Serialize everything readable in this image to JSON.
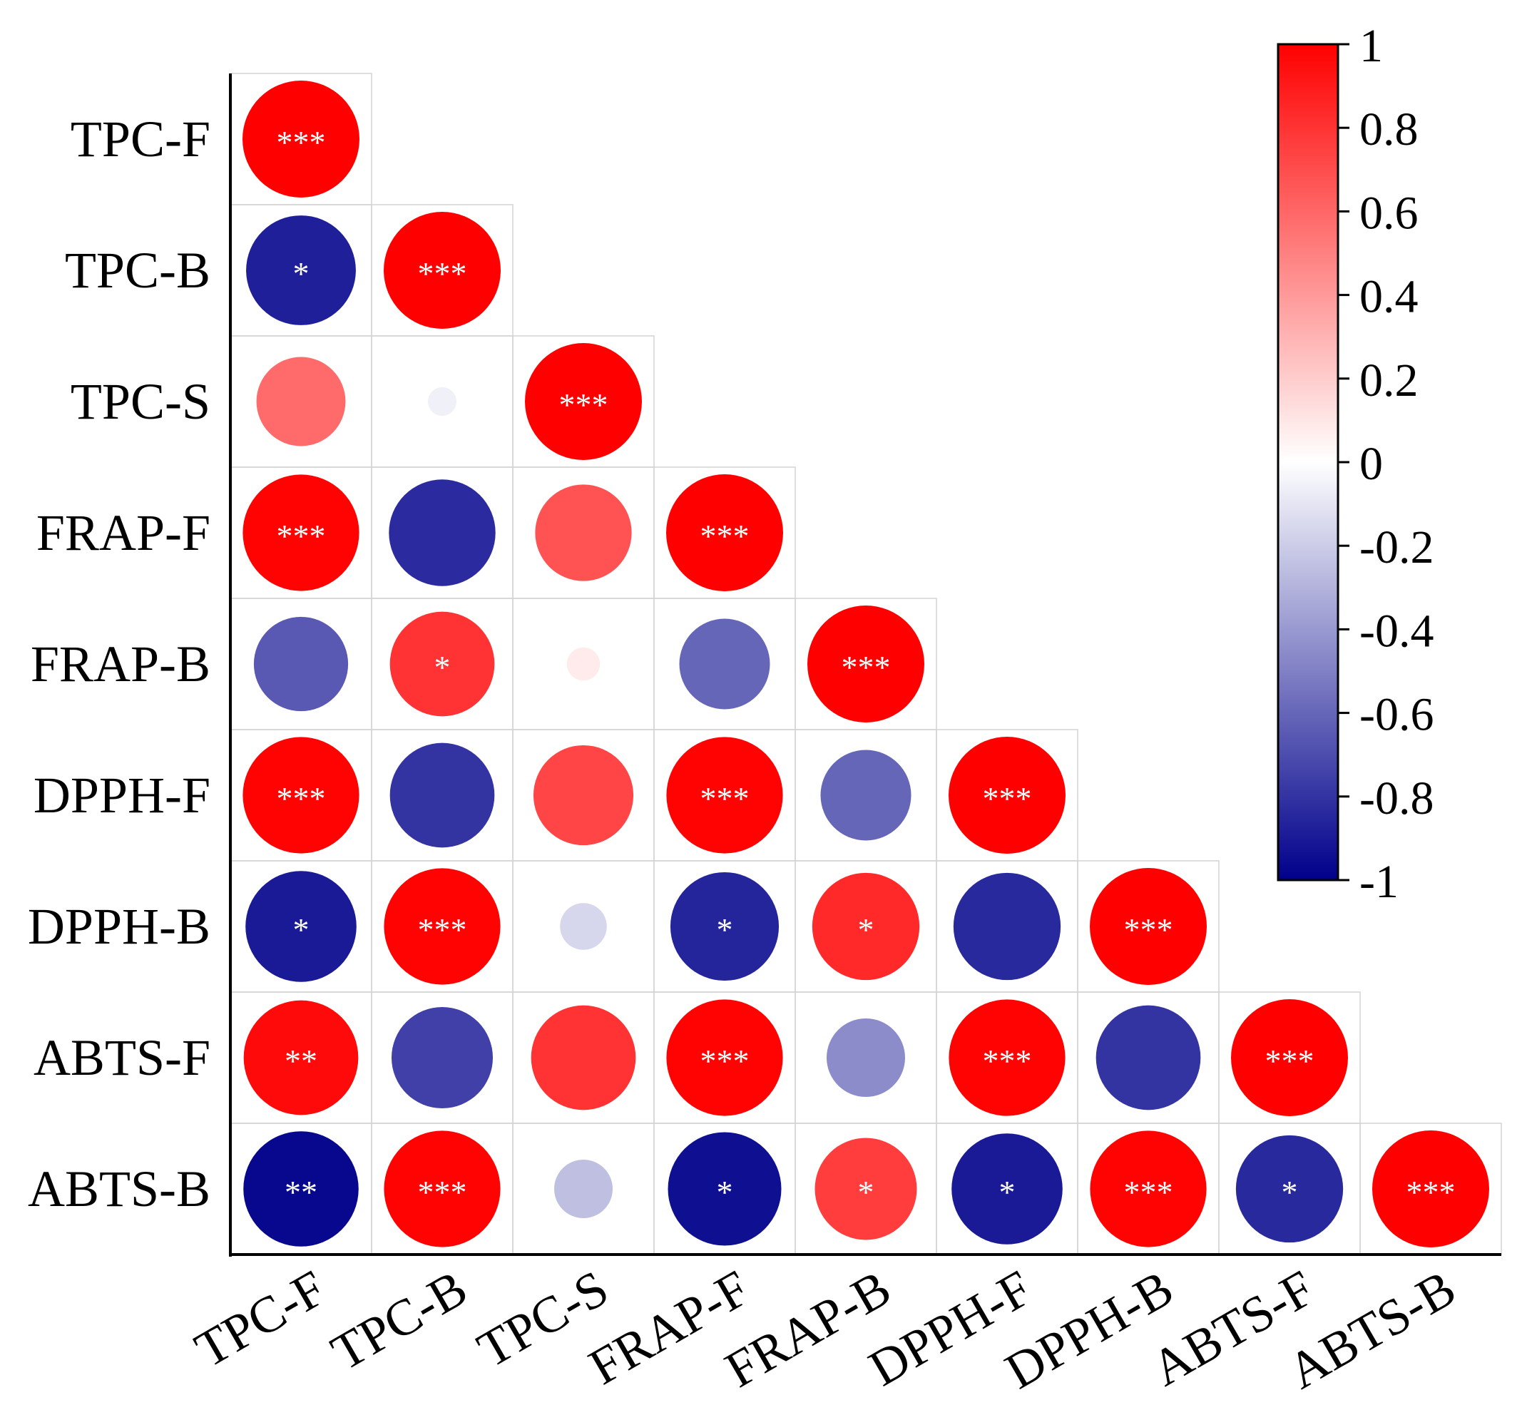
{
  "chart_data": {
    "type": "heatmap",
    "style": "lower-triangle circle correlation matrix",
    "variables": [
      "TPC-F",
      "TPC-B",
      "TPC-S",
      "FRAP-F",
      "FRAP-B",
      "DPPH-F",
      "DPPH-B",
      "ABTS-F",
      "ABTS-B"
    ],
    "cells": [
      {
        "row": "TPC-F",
        "col": "TPC-F",
        "r": 1.0,
        "sig": "***"
      },
      {
        "row": "TPC-B",
        "col": "TPC-F",
        "r": -0.88,
        "sig": "*"
      },
      {
        "row": "TPC-B",
        "col": "TPC-B",
        "r": 1.0,
        "sig": "***"
      },
      {
        "row": "TPC-S",
        "col": "TPC-F",
        "r": 0.58,
        "sig": ""
      },
      {
        "row": "TPC-S",
        "col": "TPC-B",
        "r": -0.06,
        "sig": ""
      },
      {
        "row": "TPC-S",
        "col": "TPC-S",
        "r": 1.0,
        "sig": "***"
      },
      {
        "row": "FRAP-F",
        "col": "TPC-F",
        "r": 0.99,
        "sig": "***"
      },
      {
        "row": "FRAP-F",
        "col": "TPC-B",
        "r": -0.83,
        "sig": ""
      },
      {
        "row": "FRAP-F",
        "col": "TPC-S",
        "r": 0.68,
        "sig": ""
      },
      {
        "row": "FRAP-F",
        "col": "FRAP-F",
        "r": 1.0,
        "sig": "***"
      },
      {
        "row": "FRAP-B",
        "col": "TPC-F",
        "r": -0.65,
        "sig": ""
      },
      {
        "row": "FRAP-B",
        "col": "TPC-B",
        "r": 0.8,
        "sig": "*"
      },
      {
        "row": "FRAP-B",
        "col": "TPC-S",
        "r": 0.08,
        "sig": ""
      },
      {
        "row": "FRAP-B",
        "col": "FRAP-F",
        "r": -0.6,
        "sig": ""
      },
      {
        "row": "FRAP-B",
        "col": "FRAP-B",
        "r": 1.0,
        "sig": "***"
      },
      {
        "row": "DPPH-F",
        "col": "TPC-F",
        "r": 0.99,
        "sig": "***"
      },
      {
        "row": "DPPH-F",
        "col": "TPC-B",
        "r": -0.8,
        "sig": ""
      },
      {
        "row": "DPPH-F",
        "col": "TPC-S",
        "r": 0.73,
        "sig": ""
      },
      {
        "row": "DPPH-F",
        "col": "FRAP-F",
        "r": 0.99,
        "sig": "***"
      },
      {
        "row": "DPPH-F",
        "col": "FRAP-B",
        "r": -0.6,
        "sig": ""
      },
      {
        "row": "DPPH-F",
        "col": "DPPH-F",
        "r": 1.0,
        "sig": "***"
      },
      {
        "row": "DPPH-B",
        "col": "TPC-F",
        "r": -0.9,
        "sig": "*"
      },
      {
        "row": "DPPH-B",
        "col": "TPC-B",
        "r": 0.99,
        "sig": "***"
      },
      {
        "row": "DPPH-B",
        "col": "TPC-S",
        "r": -0.16,
        "sig": ""
      },
      {
        "row": "DPPH-B",
        "col": "FRAP-F",
        "r": -0.86,
        "sig": "*"
      },
      {
        "row": "DPPH-B",
        "col": "FRAP-B",
        "r": 0.84,
        "sig": "*"
      },
      {
        "row": "DPPH-B",
        "col": "DPPH-F",
        "r": -0.84,
        "sig": ""
      },
      {
        "row": "DPPH-B",
        "col": "DPPH-B",
        "r": 1.0,
        "sig": "***"
      },
      {
        "row": "ABTS-F",
        "col": "TPC-F",
        "r": 0.96,
        "sig": "**"
      },
      {
        "row": "ABTS-F",
        "col": "TPC-B",
        "r": -0.75,
        "sig": ""
      },
      {
        "row": "ABTS-F",
        "col": "TPC-S",
        "r": 0.8,
        "sig": ""
      },
      {
        "row": "ABTS-F",
        "col": "FRAP-F",
        "r": 0.99,
        "sig": "***"
      },
      {
        "row": "ABTS-F",
        "col": "FRAP-B",
        "r": -0.45,
        "sig": ""
      },
      {
        "row": "ABTS-F",
        "col": "DPPH-F",
        "r": 0.99,
        "sig": "***"
      },
      {
        "row": "ABTS-F",
        "col": "DPPH-B",
        "r": -0.8,
        "sig": ""
      },
      {
        "row": "ABTS-F",
        "col": "ABTS-F",
        "r": 1.0,
        "sig": "***"
      },
      {
        "row": "ABTS-B",
        "col": "TPC-F",
        "r": -0.97,
        "sig": "**"
      },
      {
        "row": "ABTS-B",
        "col": "TPC-B",
        "r": 0.99,
        "sig": "***"
      },
      {
        "row": "ABTS-B",
        "col": "TPC-S",
        "r": -0.25,
        "sig": ""
      },
      {
        "row": "ABTS-B",
        "col": "FRAP-F",
        "r": -0.94,
        "sig": "*"
      },
      {
        "row": "ABTS-B",
        "col": "FRAP-B",
        "r": 0.76,
        "sig": "*"
      },
      {
        "row": "ABTS-B",
        "col": "DPPH-F",
        "r": -0.9,
        "sig": "*"
      },
      {
        "row": "ABTS-B",
        "col": "DPPH-B",
        "r": 0.99,
        "sig": "***"
      },
      {
        "row": "ABTS-B",
        "col": "ABTS-F",
        "r": -0.84,
        "sig": "*"
      },
      {
        "row": "ABTS-B",
        "col": "ABTS-B",
        "r": 1.0,
        "sig": "***"
      }
    ],
    "colorbar": {
      "range": [
        -1,
        1
      ],
      "ticks": [
        "1",
        "0.8",
        "0.6",
        "0.4",
        "0.2",
        "0",
        "-0.2",
        "-0.4",
        "-0.6",
        "-0.8",
        "-1"
      ],
      "colors": {
        "low": "#00008b",
        "mid": "#ffffff",
        "high": "#ff0000"
      }
    },
    "colors": {
      "grid": "#d3d3d3",
      "axis": "#000000",
      "sig_text": "#ffffff"
    }
  }
}
